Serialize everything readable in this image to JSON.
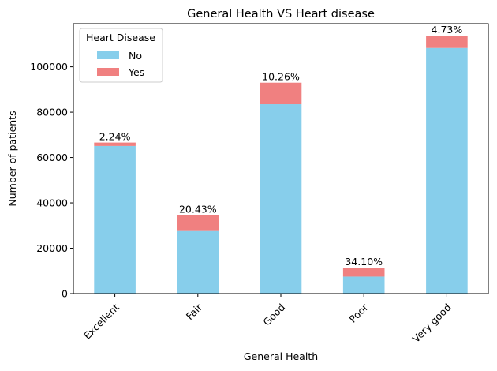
{
  "chart_data": {
    "type": "bar",
    "stacked": true,
    "title": "General Health VS Heart disease",
    "xlabel": "General Health",
    "ylabel": "Number of patients",
    "categories": [
      "Excellent",
      "Fair",
      "Good",
      "Poor",
      "Very good"
    ],
    "series": [
      {
        "name": "No",
        "color": "#87ceeb",
        "values": [
          65100,
          27600,
          83500,
          7500,
          108300
        ]
      },
      {
        "name": "Yes",
        "color": "#f08080",
        "values": [
          1500,
          7100,
          9500,
          3900,
          5400
        ]
      }
    ],
    "data_labels": [
      "2.24%",
      "20.43%",
      "10.26%",
      "34.10%",
      "4.73%"
    ],
    "ylim": [
      0,
      119000
    ],
    "yticks": [
      0,
      20000,
      40000,
      60000,
      80000,
      100000
    ],
    "legend": {
      "title": "Heart Disease",
      "placement": "top-left"
    },
    "grid": false
  }
}
